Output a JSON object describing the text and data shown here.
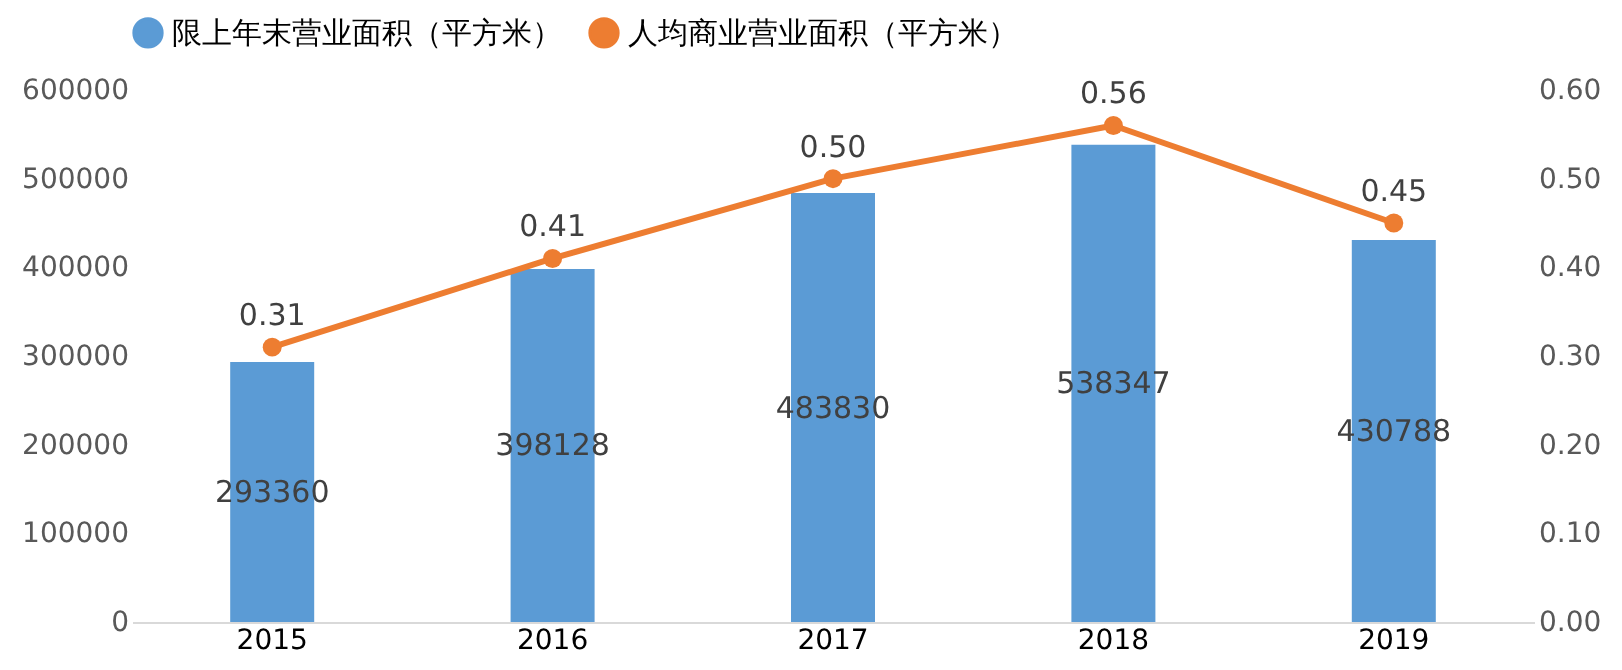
{
  "chart_data": {
    "type": "bar",
    "categories": [
      "2015",
      "2016",
      "2017",
      "2018",
      "2019"
    ],
    "series": [
      {
        "name": "限上年末营业面积（平方米）",
        "color": "#5b9bd5",
        "values": [
          293360,
          398128,
          483830,
          538347,
          430788
        ]
      },
      {
        "name": "人均商业营业面积（平方米）",
        "color": "#ed7d31",
        "type": "line",
        "axis": "y2",
        "marker": "circle",
        "values": [
          0.31,
          0.41,
          0.5,
          0.56,
          0.45
        ],
        "value_labels": [
          "0.31",
          "0.41",
          "0.50",
          "0.56",
          "0.45"
        ]
      }
    ],
    "ylim": [
      0,
      600000
    ],
    "yticks": [
      0,
      100000,
      200000,
      300000,
      400000,
      500000,
      600000
    ],
    "y2lim": [
      0,
      0.6
    ],
    "y2ticks": [
      {
        "value": 0,
        "label": "0.00"
      },
      {
        "value": 0.1,
        "label": "0.10"
      },
      {
        "value": 0.2,
        "label": "0.20"
      },
      {
        "value": 0.3,
        "label": "0.30"
      },
      {
        "value": 0.4,
        "label": "0.40"
      },
      {
        "value": 0.5,
        "label": "0.50"
      },
      {
        "value": 0.6,
        "label": "0.60"
      }
    ],
    "data_labels": true,
    "grid": false,
    "legend": "top"
  }
}
